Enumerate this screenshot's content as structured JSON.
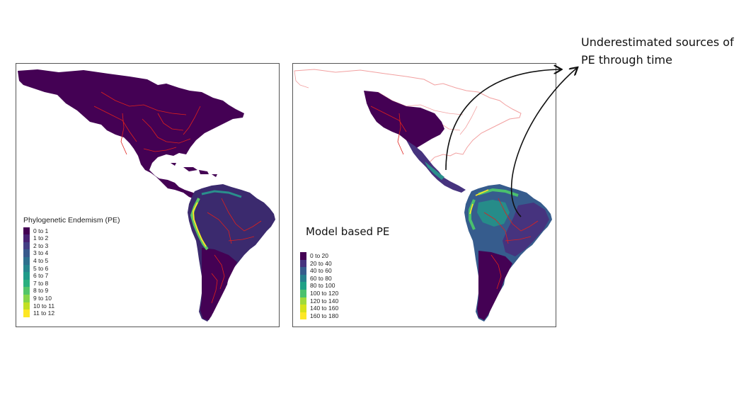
{
  "left_panel": {
    "legend_title": "Phylogenetic Endemism (PE)",
    "legend": [
      {
        "label": "0 to 1",
        "color": "#440154"
      },
      {
        "label": "1 to 2",
        "color": "#482173"
      },
      {
        "label": "2 to 3",
        "color": "#433e85"
      },
      {
        "label": "3 to 4",
        "color": "#38598c"
      },
      {
        "label": "4 to 5",
        "color": "#2d708e"
      },
      {
        "label": "5 to 6",
        "color": "#25858e"
      },
      {
        "label": "6 to 7",
        "color": "#1e9b8a"
      },
      {
        "label": "7 to 8",
        "color": "#2ab07f"
      },
      {
        "label": "8 to 9",
        "color": "#52c569"
      },
      {
        "label": "9 to 10",
        "color": "#86d549"
      },
      {
        "label": "10 to 11",
        "color": "#c2df23"
      },
      {
        "label": "11 to 12",
        "color": "#fde725"
      }
    ]
  },
  "right_panel": {
    "title": "Model based PE",
    "legend": [
      {
        "label": "0 to 20",
        "color": "#440154"
      },
      {
        "label": "20 to 40",
        "color": "#46337e"
      },
      {
        "label": "40 to 60",
        "color": "#365c8d"
      },
      {
        "label": "60 to 80",
        "color": "#277f8e"
      },
      {
        "label": "80 to 100",
        "color": "#1fa187"
      },
      {
        "label": "100 to 120",
        "color": "#4ac16d"
      },
      {
        "label": "120 to 140",
        "color": "#a0da39"
      },
      {
        "label": "140 to 160",
        "color": "#d6e21a"
      },
      {
        "label": "160 to 180",
        "color": "#fde725"
      }
    ]
  },
  "annotation": {
    "line1": "Underestimated sources of",
    "line2": "PE through time"
  },
  "colors": {
    "base_purple": "#440154",
    "mid_purple": "#3b2a6e",
    "boundary_red": "#e0201b",
    "outline_pink": "#f2a0a0",
    "teal": "#2a8f8c",
    "green": "#5cc863",
    "yellow": "#fde725"
  }
}
